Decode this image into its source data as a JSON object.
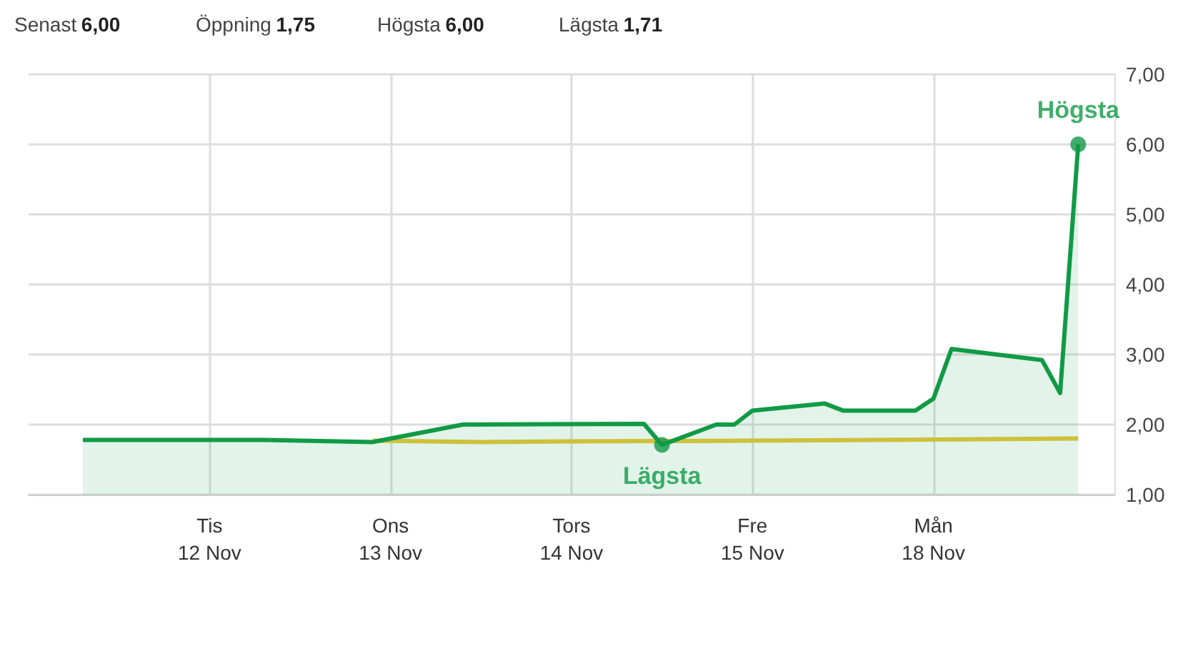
{
  "chart_data": {
    "type": "area",
    "annotations": [
      "Senast 6,00",
      "Öppning 1,75",
      "Högsta 6,00",
      "Lägsta 1,71",
      {
        "text": "Högsta",
        "y": 6.0
      },
      {
        "text": "Lägsta",
        "y": 1.71
      }
    ],
    "categories": [
      null,
      null,
      null,
      null,
      null,
      null,
      null,
      null,
      null,
      null,
      "Tis\n12 Nov",
      null,
      null,
      null,
      null,
      null,
      null,
      null,
      null,
      null,
      "Ons\n13 Nov",
      null,
      null,
      null,
      null,
      null,
      null,
      null,
      null,
      null,
      "Tors\n14 Nov",
      null,
      null,
      null,
      null,
      null,
      null,
      null,
      null,
      null,
      "Fre\n15 Nov",
      null,
      null,
      null,
      null,
      null,
      null,
      null,
      null,
      null,
      "Mån\n18 Nov",
      null,
      null,
      null,
      null,
      null,
      null,
      null,
      null,
      null,
      null
    ],
    "series": [
      {
        "color": "#119a46",
        "values": [
          null,
          null,
          null,
          1.78,
          null,
          null,
          null,
          null,
          null,
          null,
          null,
          null,
          null,
          1.78,
          null,
          null,
          null,
          null,
          null,
          1.75,
          null,
          null,
          null,
          null,
          2.0,
          null,
          null,
          null,
          null,
          null,
          null,
          null,
          null,
          null,
          2.01,
          1.71,
          null,
          null,
          2.0,
          2.0,
          2.2,
          null,
          null,
          null,
          2.3,
          2.2,
          null,
          null,
          null,
          2.2,
          2.37,
          3.08,
          null,
          null,
          null,
          null,
          2.92,
          2.45,
          6.0,
          null,
          null
        ]
      },
      {
        "type": "line",
        "color": "#e8c53a",
        "values": [
          null,
          null,
          null,
          null,
          null,
          null,
          null,
          null,
          null,
          null,
          null,
          null,
          null,
          null,
          null,
          null,
          null,
          null,
          null,
          1.77,
          null,
          null,
          null,
          null,
          null,
          1.75,
          null,
          null,
          null,
          null,
          1.76,
          null,
          null,
          null,
          null,
          null,
          null,
          null,
          null,
          null,
          1.77,
          null,
          null,
          null,
          null,
          null,
          null,
          null,
          null,
          null,
          null,
          null,
          null,
          null,
          null,
          null,
          null,
          null,
          1.8,
          null,
          null
        ]
      }
    ],
    "ylim": [
      1,
      7
    ],
    "yticks": [
      {
        "value": 1,
        "label": "1,00"
      },
      {
        "value": 2,
        "label": "2,00"
      },
      {
        "value": 3,
        "label": "3,00"
      },
      {
        "value": 4,
        "label": "4,00"
      },
      {
        "value": 5,
        "label": "5,00"
      },
      {
        "value": 6,
        "label": "6,00"
      },
      {
        "value": 7,
        "label": "7,00"
      }
    ],
    "grid": true
  }
}
